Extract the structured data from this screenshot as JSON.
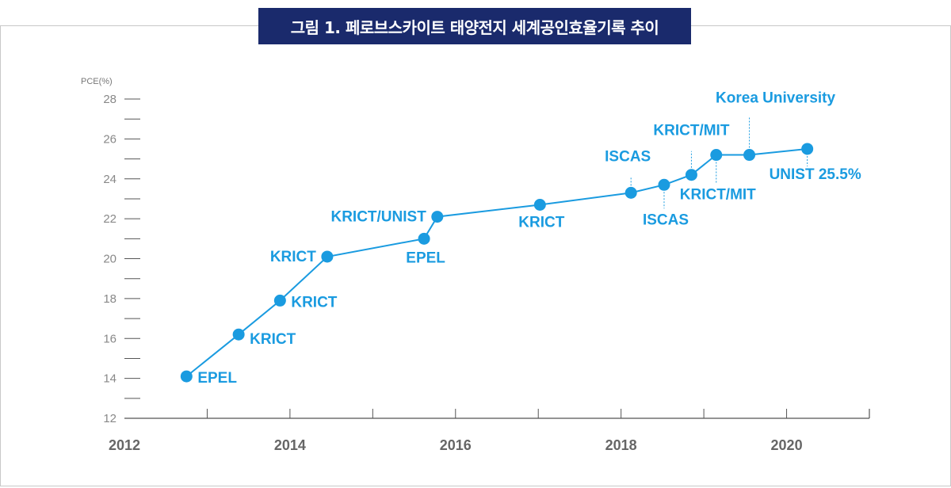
{
  "title": "그림 1. 페로브스카이트 태양전지 세계공인효율기록 추이",
  "colors": {
    "accent": "#1a9be0",
    "title_bg": "#1a2a6c",
    "axis": "#555555",
    "tick_text": "#888888"
  },
  "chart_data": {
    "type": "line",
    "ylabel": "PCE(%)",
    "xlabel": "",
    "ylim": [
      12,
      28
    ],
    "xlim": [
      2012,
      2021
    ],
    "y_ticks": [
      "12",
      "14",
      "16",
      "18",
      "20",
      "22",
      "24",
      "26",
      "28"
    ],
    "x_ticks": [
      "2012",
      "2014",
      "2016",
      "2018",
      "2020"
    ],
    "grid": false,
    "series": [
      {
        "points": [
          {
            "x": 2012.75,
            "y": 14.1,
            "label": "EPEL"
          },
          {
            "x": 2013.38,
            "y": 16.2,
            "label": "KRICT"
          },
          {
            "x": 2013.88,
            "y": 17.9,
            "label": "KRICT"
          },
          {
            "x": 2014.45,
            "y": 20.1,
            "label": "KRICT"
          },
          {
            "x": 2015.62,
            "y": 21.0,
            "label": "EPEL"
          },
          {
            "x": 2015.78,
            "y": 22.1,
            "label": "KRICT/UNIST"
          },
          {
            "x": 2017.02,
            "y": 22.7,
            "label": "KRICT"
          },
          {
            "x": 2018.12,
            "y": 23.3,
            "label": "ISCAS"
          },
          {
            "x": 2018.52,
            "y": 23.7,
            "label": "ISCAS"
          },
          {
            "x": 2018.85,
            "y": 24.2,
            "label": "KRICT/MIT"
          },
          {
            "x": 2019.15,
            "y": 25.2,
            "label": "KRICT/MIT"
          },
          {
            "x": 2019.55,
            "y": 25.2,
            "label": "Korea University"
          },
          {
            "x": 2020.25,
            "y": 25.5,
            "label": "UNIST 25.5%"
          }
        ]
      }
    ]
  }
}
